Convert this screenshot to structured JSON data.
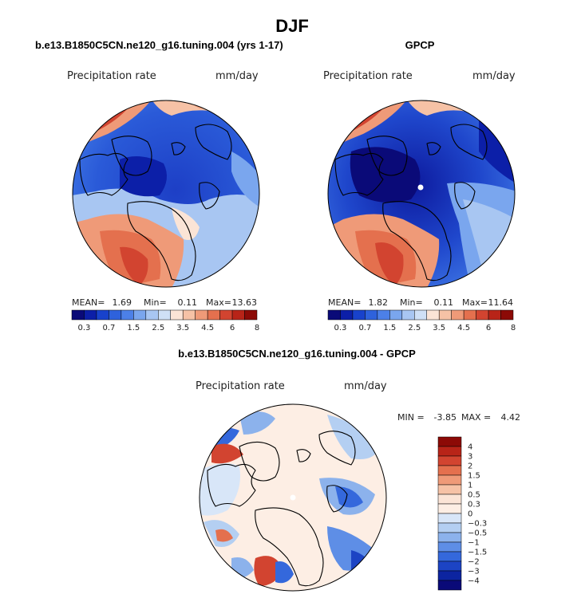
{
  "figure": {
    "season": "DJF",
    "panel_a_title": "b.e13.B1850C5CN.ne120_g16.tuning.004 (yrs 1-17)",
    "panel_b_title": "GPCP",
    "panel_c_title": "b.e13.B1850C5CN.ne120_g16.tuning.004 - GPCP"
  },
  "chart_data": [
    {
      "type": "heatmap",
      "projection": "polar stereographic (north)",
      "title": "b.e13.B1850C5CN.ne120_g16.tuning.004 (yrs 1-17)",
      "variable_label": "Precipitation rate",
      "units_label": "mm/day",
      "stats": {
        "mean_label": "MEAN=",
        "mean": "1.69",
        "min_label": "Min=",
        "min": "0.11",
        "max_label": "Max=",
        "max": "13.63"
      },
      "colorbar_ticks": [
        "0.3",
        "0.7",
        "1.5",
        "2.5",
        "3.5",
        "4.5",
        "6",
        "8"
      ],
      "colorbar_colors": [
        "#0a0a78",
        "#0c1fa8",
        "#1842cc",
        "#2e62dc",
        "#4c80e8",
        "#7aa6ee",
        "#a8c6f2",
        "#cfe0f6",
        "#fbe4d6",
        "#f6c2a6",
        "#ef9a78",
        "#e4704e",
        "#d24430",
        "#b82418",
        "#8c0a06"
      ]
    },
    {
      "type": "heatmap",
      "projection": "polar stereographic (north)",
      "title": "GPCP",
      "variable_label": "Precipitation rate",
      "units_label": "mm/day",
      "stats": {
        "mean_label": "MEAN=",
        "mean": "1.82",
        "min_label": "Min=",
        "min": "0.11",
        "max_label": "Max=",
        "max": "11.64"
      },
      "colorbar_ticks": [
        "0.3",
        "0.7",
        "1.5",
        "2.5",
        "3.5",
        "4.5",
        "6",
        "8"
      ],
      "colorbar_colors": [
        "#0a0a78",
        "#0c1fa8",
        "#1842cc",
        "#2e62dc",
        "#4c80e8",
        "#7aa6ee",
        "#a8c6f2",
        "#cfe0f6",
        "#fbe4d6",
        "#f6c2a6",
        "#ef9a78",
        "#e4704e",
        "#d24430",
        "#b82418",
        "#8c0a06"
      ]
    },
    {
      "type": "heatmap",
      "projection": "polar stereographic (north)",
      "title": "b.e13.B1850C5CN.ne120_g16.tuning.004 - GPCP",
      "variable_label": "Precipitation rate",
      "units_label": "mm/day",
      "stats": {
        "min_label": "MIN =",
        "min": "-3.85",
        "max_label": "MAX =",
        "max": "4.42"
      },
      "colorbar_orientation": "vertical",
      "colorbar_ticks": [
        "4",
        "3",
        "2",
        "1.5",
        "1",
        "0.5",
        "0.3",
        "0",
        "-0.3",
        "-0.5",
        "-1",
        "-1.5",
        "-2",
        "-3",
        "-4"
      ],
      "colorbar_colors": [
        "#8c0a06",
        "#b82418",
        "#d24430",
        "#e4704e",
        "#ef9a78",
        "#f6c2a6",
        "#fbe4d6",
        "#fdeee4",
        "#d8e6f8",
        "#b4cff2",
        "#8cb2ec",
        "#5e8ee6",
        "#3468dc",
        "#1c44c4",
        "#0c24a0",
        "#0a0a78"
      ]
    }
  ]
}
